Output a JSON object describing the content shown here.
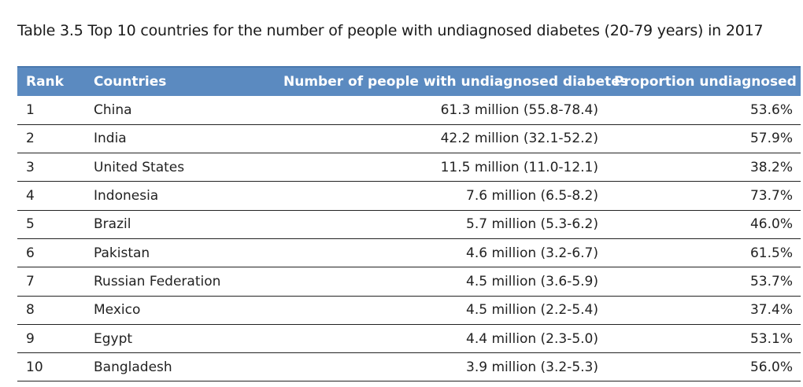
{
  "title": "Table 3.5 Top 10 countries for the number of people with undiagnosed diabetes (20-79 years) in 2017",
  "table": {
    "headers": {
      "rank": "Rank",
      "countries": "Countries",
      "number": "Number of people with undiagnosed diabetes",
      "proportion": "Proportion undiagnosed"
    },
    "rows": [
      {
        "rank": "1",
        "country": "China",
        "number": "61.3 million (55.8-78.4)",
        "proportion": "53.6%"
      },
      {
        "rank": "2",
        "country": "India",
        "number": "42.2 million (32.1-52.2)",
        "proportion": "57.9%"
      },
      {
        "rank": "3",
        "country": "United States",
        "number": "11.5 million (11.0-12.1)",
        "proportion": "38.2%"
      },
      {
        "rank": "4",
        "country": "Indonesia",
        "number": "7.6 million (6.5-8.2)",
        "proportion": "73.7%"
      },
      {
        "rank": "5",
        "country": "Brazil",
        "number": "5.7 million (5.3-6.2)",
        "proportion": "46.0%"
      },
      {
        "rank": "6",
        "country": "Pakistan",
        "number": "4.6 million (3.2-6.7)",
        "proportion": "61.5%"
      },
      {
        "rank": "7",
        "country": "Russian Federation",
        "number": "4.5 million (3.6-5.9)",
        "proportion": "53.7%"
      },
      {
        "rank": "8",
        "country": "Mexico",
        "number": "4.5 million (2.2-5.4)",
        "proportion": "37.4%"
      },
      {
        "rank": "9",
        "country": "Egypt",
        "number": "4.4 million (2.3-5.0)",
        "proportion": "53.1%"
      },
      {
        "rank": "10",
        "country": "Bangladesh",
        "number": "3.9 million (3.2-5.3)",
        "proportion": "56.0%"
      }
    ]
  },
  "colors": {
    "header_bg": "#5b8ac0",
    "header_text": "#ffffff",
    "row_divider": "#222222"
  }
}
